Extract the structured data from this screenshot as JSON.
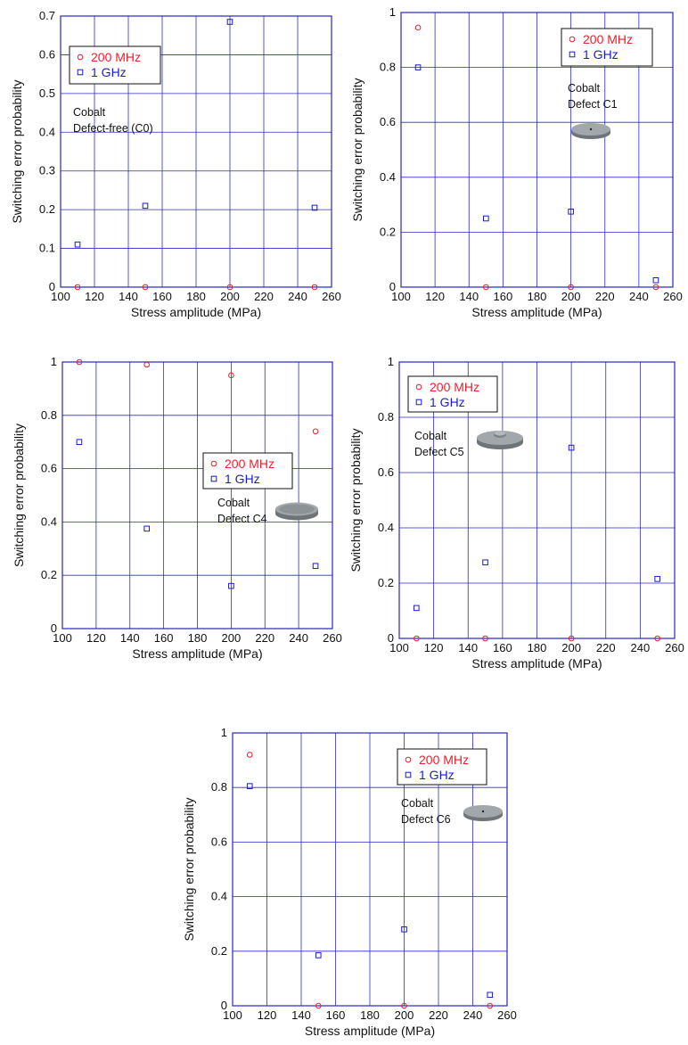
{
  "chart_data": [
    {
      "type": "scatter",
      "xlabel": "Stress amplitude (MPa)",
      "ylabel": "Switching error probability",
      "xlim": [
        100,
        260
      ],
      "ylim": [
        0,
        0.7
      ],
      "xticks": [
        "100",
        "120",
        "140",
        "160",
        "180",
        "200",
        "220",
        "240",
        "260"
      ],
      "yticks": [
        "0",
        "0.1",
        "0.2",
        "0.3",
        "0.4",
        "0.5",
        "0.6",
        "0.7"
      ],
      "grid": true,
      "legend_position": "top-left",
      "x": [
        110,
        150,
        200,
        250
      ],
      "series": [
        {
          "name": "200 MHz",
          "marker": "circle",
          "color": "#e8202a",
          "values": [
            0,
            0,
            0,
            0
          ]
        },
        {
          "name": "1 GHz",
          "marker": "square",
          "color": "#1a1ad8",
          "values": [
            0.11,
            0.21,
            0.685,
            0.205
          ]
        }
      ],
      "annotation": [
        "Cobalt",
        "Defect-free (C0)"
      ],
      "inset_image": null
    },
    {
      "type": "scatter",
      "xlabel": "Stress amplitude (MPa)",
      "ylabel": "Switching error probability",
      "xlim": [
        100,
        260
      ],
      "ylim": [
        0,
        1
      ],
      "xticks": [
        "100",
        "120",
        "140",
        "160",
        "180",
        "200",
        "220",
        "240",
        "260"
      ],
      "yticks": [
        "0",
        "0.2",
        "0.4",
        "0.6",
        "0.8",
        "1"
      ],
      "grid": true,
      "legend_position": "top-right",
      "x": [
        110,
        150,
        200,
        250
      ],
      "series": [
        {
          "name": "200 MHz",
          "marker": "circle",
          "color": "#e8202a",
          "values": [
            0.945,
            0,
            0,
            0
          ]
        },
        {
          "name": "1 GHz",
          "marker": "square",
          "color": "#1a1ad8",
          "values": [
            0.8,
            0.25,
            0.275,
            0.025
          ]
        }
      ],
      "annotation": [
        "Cobalt",
        "Defect C1"
      ],
      "inset_image": "disk-with-pinhole"
    },
    {
      "type": "scatter",
      "xlabel": "Stress amplitude (MPa)",
      "ylabel": "Switching error probability",
      "xlim": [
        100,
        260
      ],
      "ylim": [
        0,
        1
      ],
      "xticks": [
        "100",
        "120",
        "140",
        "160",
        "180",
        "200",
        "220",
        "240",
        "260"
      ],
      "yticks": [
        "0",
        "0.2",
        "0.4",
        "0.6",
        "0.8",
        "1"
      ],
      "grid": true,
      "legend_position": "center-right",
      "x": [
        110,
        150,
        200,
        250
      ],
      "series": [
        {
          "name": "200 MHz",
          "marker": "circle",
          "color": "#e8202a",
          "values": [
            1.0,
            0.99,
            0.95,
            0.74
          ]
        },
        {
          "name": "1 GHz",
          "marker": "square",
          "color": "#1a1ad8",
          "values": [
            0.7,
            0.375,
            0.16,
            0.235
          ]
        }
      ],
      "annotation": [
        "Cobalt",
        "Defect C4"
      ],
      "inset_image": "disk-with-rim"
    },
    {
      "type": "scatter",
      "xlabel": "Stress amplitude (MPa)",
      "ylabel": "Switching error probability",
      "xlim": [
        100,
        260
      ],
      "ylim": [
        0,
        1
      ],
      "xticks": [
        "100",
        "120",
        "140",
        "160",
        "180",
        "200",
        "220",
        "240",
        "260"
      ],
      "yticks": [
        "0",
        "0.2",
        "0.4",
        "0.6",
        "0.8",
        "1"
      ],
      "grid": true,
      "legend_position": "top-left",
      "x": [
        110,
        150,
        200,
        250
      ],
      "series": [
        {
          "name": "200 MHz",
          "marker": "circle",
          "color": "#e8202a",
          "values": [
            0,
            0,
            0,
            0
          ]
        },
        {
          "name": "1 GHz",
          "marker": "square",
          "color": "#1a1ad8",
          "values": [
            0.11,
            0.275,
            0.69,
            0.215
          ]
        }
      ],
      "annotation": [
        "Cobalt",
        "Defect C5"
      ],
      "inset_image": "disk-with-bump"
    },
    {
      "type": "scatter",
      "xlabel": "Stress amplitude (MPa)",
      "ylabel": "Switching error probability",
      "xlim": [
        100,
        260
      ],
      "ylim": [
        0,
        1
      ],
      "xticks": [
        "100",
        "120",
        "140",
        "160",
        "180",
        "200",
        "220",
        "240",
        "260"
      ],
      "yticks": [
        "0",
        "0.2",
        "0.4",
        "0.6",
        "0.8",
        "1"
      ],
      "grid": true,
      "legend_position": "top-right",
      "x": [
        110,
        150,
        200,
        250
      ],
      "series": [
        {
          "name": "200 MHz",
          "marker": "circle",
          "color": "#e8202a",
          "values": [
            0.92,
            0,
            0,
            0
          ]
        },
        {
          "name": "1 GHz",
          "marker": "square",
          "color": "#1a1ad8",
          "values": [
            0.805,
            0.185,
            0.28,
            0.04
          ]
        }
      ],
      "annotation": [
        "Cobalt",
        "Defect C6"
      ],
      "inset_image": "disk-with-pinhole"
    }
  ],
  "style": {
    "axis_color": "#2525c0",
    "grid_color": "#2a2ad0",
    "text_color": "#111111",
    "legend_border": "#111111",
    "disk_top": "#a2a7ab",
    "disk_side": "#6f7478"
  }
}
